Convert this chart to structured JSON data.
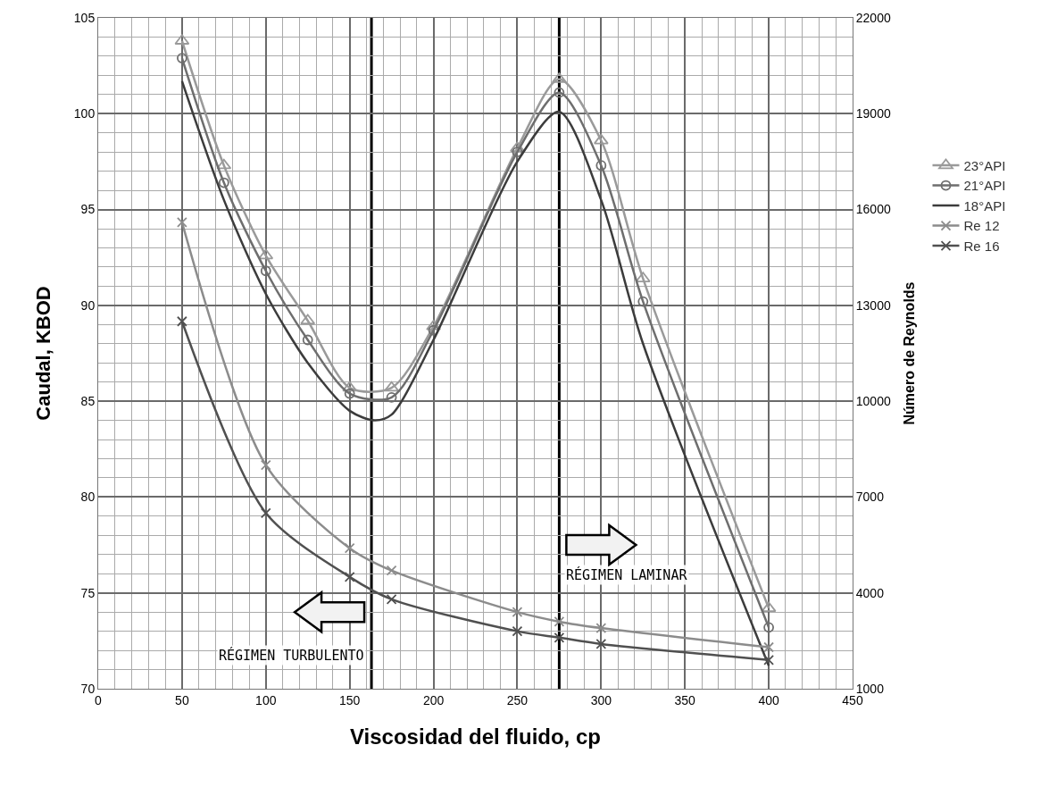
{
  "chart_data": {
    "type": "line",
    "xlabel": "Viscosidad del fluido, cp",
    "ylabel": "Caudal, KBOD",
    "y2label": "Número de Reynolds",
    "xlim": [
      0,
      450
    ],
    "xticks": [
      0,
      50,
      100,
      150,
      200,
      250,
      300,
      350,
      400,
      450
    ],
    "ylim": [
      70,
      105
    ],
    "yticks": [
      70,
      75,
      80,
      85,
      90,
      95,
      100,
      105
    ],
    "y2lim": [
      1000,
      22000
    ],
    "y2ticks": [
      1000,
      4000,
      7000,
      10000,
      13000,
      16000,
      19000,
      22000
    ],
    "grid": true,
    "legend": "right",
    "line_style": "solid",
    "series": [
      {
        "name": "23°API",
        "color": "#9a9a9a",
        "marker": "triangle",
        "x": [
          50,
          75,
          100,
          125,
          150,
          175,
          200,
          250,
          275,
          300,
          325,
          400
        ],
        "values": [
          103.8,
          97.3,
          92.6,
          89.2,
          85.7,
          85.7,
          88.9,
          98.2,
          101.8,
          98.6,
          91.4,
          74.2
        ]
      },
      {
        "name": "21°API",
        "color": "#6e6e6e",
        "marker": "circle",
        "x": [
          50,
          75,
          100,
          125,
          150,
          175,
          200,
          250,
          275,
          300,
          325,
          400
        ],
        "values": [
          102.9,
          96.4,
          91.8,
          88.2,
          85.4,
          85.2,
          88.7,
          98.0,
          101.1,
          97.3,
          90.2,
          73.2
        ]
      },
      {
        "name": "18°API",
        "color": "#3c3c3c",
        "marker": "none",
        "x": [
          50,
          75,
          100,
          125,
          150,
          165,
          175,
          200,
          250,
          275,
          300,
          325,
          400
        ],
        "values": [
          101.7,
          95.5,
          90.6,
          87.0,
          84.5,
          84.0,
          84.3,
          88.2,
          97.5,
          100.1,
          95.5,
          88.0,
          71.2
        ]
      },
      {
        "name": "Re 12",
        "color": "#8c8c8c",
        "marker": "cross",
        "axis": "y2",
        "x": [
          50,
          100,
          150,
          175,
          250,
          275,
          300,
          400
        ],
        "values": [
          15600,
          8000,
          5400,
          4700,
          3400,
          3100,
          2900,
          2300
        ]
      },
      {
        "name": "Re 16",
        "color": "#505050",
        "marker": "cross",
        "axis": "y2",
        "x": [
          50,
          100,
          150,
          175,
          250,
          275,
          300,
          400
        ],
        "values": [
          12500,
          6500,
          4500,
          3800,
          2800,
          2600,
          2400,
          1900
        ]
      }
    ],
    "ref_lines": [
      {
        "axis": "x",
        "value": 163,
        "color": "#000000"
      },
      {
        "axis": "x",
        "value": 275,
        "color": "#000000"
      }
    ],
    "annotations": [
      "RÉGIMEN TURBULENTO",
      "RÉGIMEN LAMINAR"
    ]
  }
}
